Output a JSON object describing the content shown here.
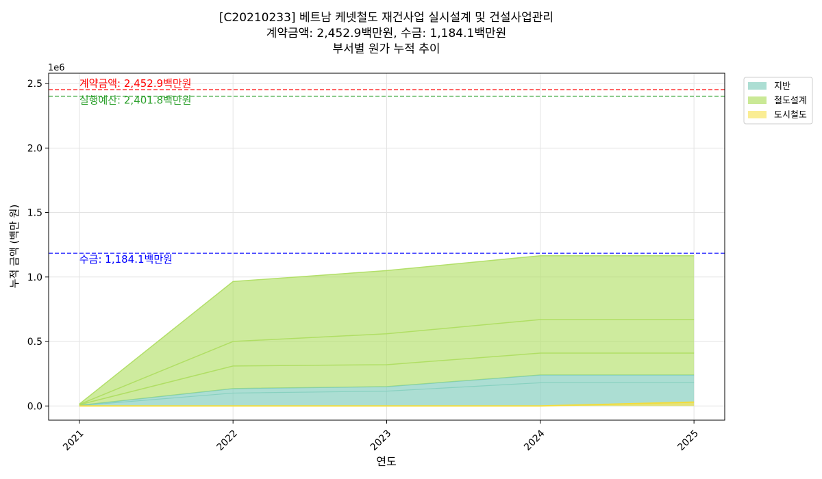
{
  "chart_data": {
    "type": "area",
    "title_lines": [
      "[C20210233] 베트남 케넷철도 재건사업 실시설계 및 건설사업관리",
      "계약금액: 2,452.9백만원, 수금: 1,184.1백만원",
      "부서별 원가 누적 추이"
    ],
    "xlabel": "연도",
    "ylabel": "누적 금액 (백만 원)",
    "y_offset_label": "1e6",
    "x": [
      "2021",
      "2022",
      "2023",
      "2024",
      "2025"
    ],
    "xlim": [
      2020.8,
      2025.2
    ],
    "ylim": [
      -110000,
      2580000
    ],
    "yticks": [
      0,
      500000,
      1000000,
      1500000,
      2000000,
      2500000
    ],
    "ytick_labels": [
      "0.0",
      "0.5",
      "1.0",
      "1.5",
      "2.0",
      "2.5"
    ],
    "grid": true,
    "legend_position": "outside-top-right",
    "series": [
      {
        "name": "지반",
        "color": "#7fcdbb",
        "lines": [
          [
            5000,
            135000,
            150000,
            240000,
            240000
          ]
        ]
      },
      {
        "name": "철도설계",
        "color": "#addd5e",
        "lines": [
          [
            10000,
            310000,
            320000,
            410000,
            410000
          ],
          [
            12000,
            500000,
            560000,
            670000,
            670000
          ],
          [
            15000,
            965000,
            1050000,
            1165000,
            1165000
          ]
        ]
      },
      {
        "name": "도시철도",
        "color": "#f7e35a",
        "lines": [
          [
            0,
            0,
            0,
            0,
            30000
          ]
        ]
      }
    ],
    "inner_lines": [
      {
        "color": "#7fcdbb",
        "values": [
          3000,
          100000,
          115000,
          180000,
          180000
        ]
      }
    ],
    "hlines": [
      {
        "label": "계약금액: 2,452.9백만원",
        "value": 2452900,
        "color": "#ff0000"
      },
      {
        "label": "실행예산: 2,401.8백만원",
        "value": 2401800,
        "color": "#2ca02c"
      },
      {
        "label": "수금: 1,184.1백만원",
        "value": 1184100,
        "color": "#0000ff"
      }
    ]
  }
}
